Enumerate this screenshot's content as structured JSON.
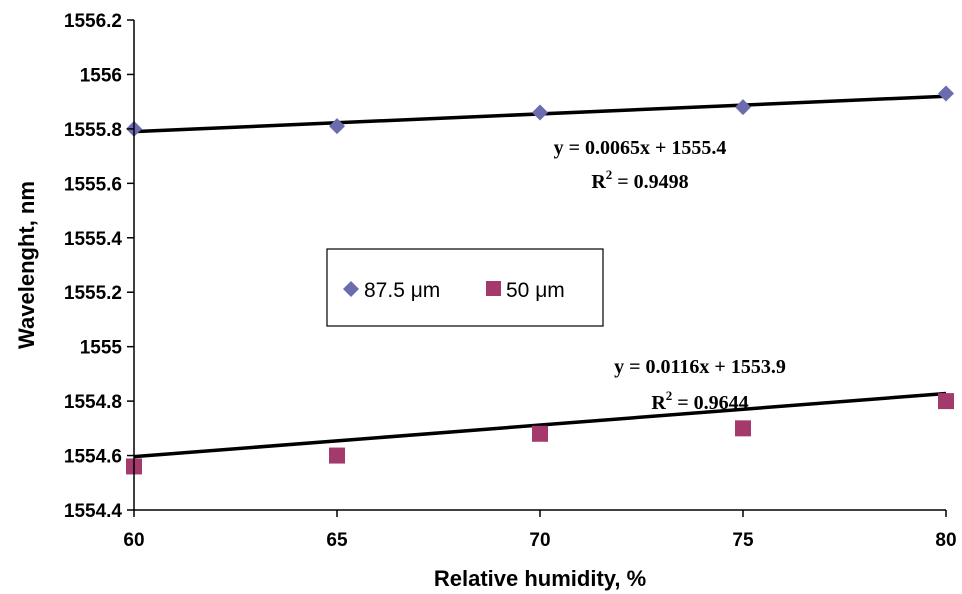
{
  "chart_data": {
    "type": "scatter",
    "xlabel": "Relative humidity, %",
    "ylabel": "Wavelenght, nm",
    "xlim": [
      60,
      80
    ],
    "ylim": [
      1554.4,
      1556.2
    ],
    "x_ticks": [
      "60",
      "65",
      "70",
      "75",
      "80"
    ],
    "y_ticks": [
      "1554.4",
      "1554.6",
      "1554.8",
      "1555",
      "1555.2",
      "1555.4",
      "1555.6",
      "1555.8",
      "1556",
      "1556.2"
    ],
    "grid": false,
    "legend_position": "center-left",
    "series": [
      {
        "name": "87.5 μm",
        "marker": "diamond",
        "color": "#6B6BAE",
        "x": [
          60,
          65,
          70,
          75,
          80
        ],
        "y": [
          1555.8,
          1555.81,
          1555.86,
          1555.88,
          1555.93
        ],
        "trendline": {
          "slope": 0.0065,
          "intercept": 1555.4,
          "equation": "y = 0.0065x + 1555.4",
          "r2_label": "R",
          "r2_sup": "2",
          "r2_value": " = 0.9498"
        }
      },
      {
        "name": "50 μm",
        "marker": "square",
        "color": "#A33A6B",
        "x": [
          60,
          65,
          70,
          75,
          80
        ],
        "y": [
          1554.56,
          1554.6,
          1554.68,
          1554.7,
          1554.8
        ],
        "trendline": {
          "slope": 0.0116,
          "intercept": 1553.9,
          "equation": "y = 0.0116x + 1553.9",
          "r2_label": "R",
          "r2_sup": "2",
          "r2_value": " = 0.9644"
        }
      }
    ]
  }
}
